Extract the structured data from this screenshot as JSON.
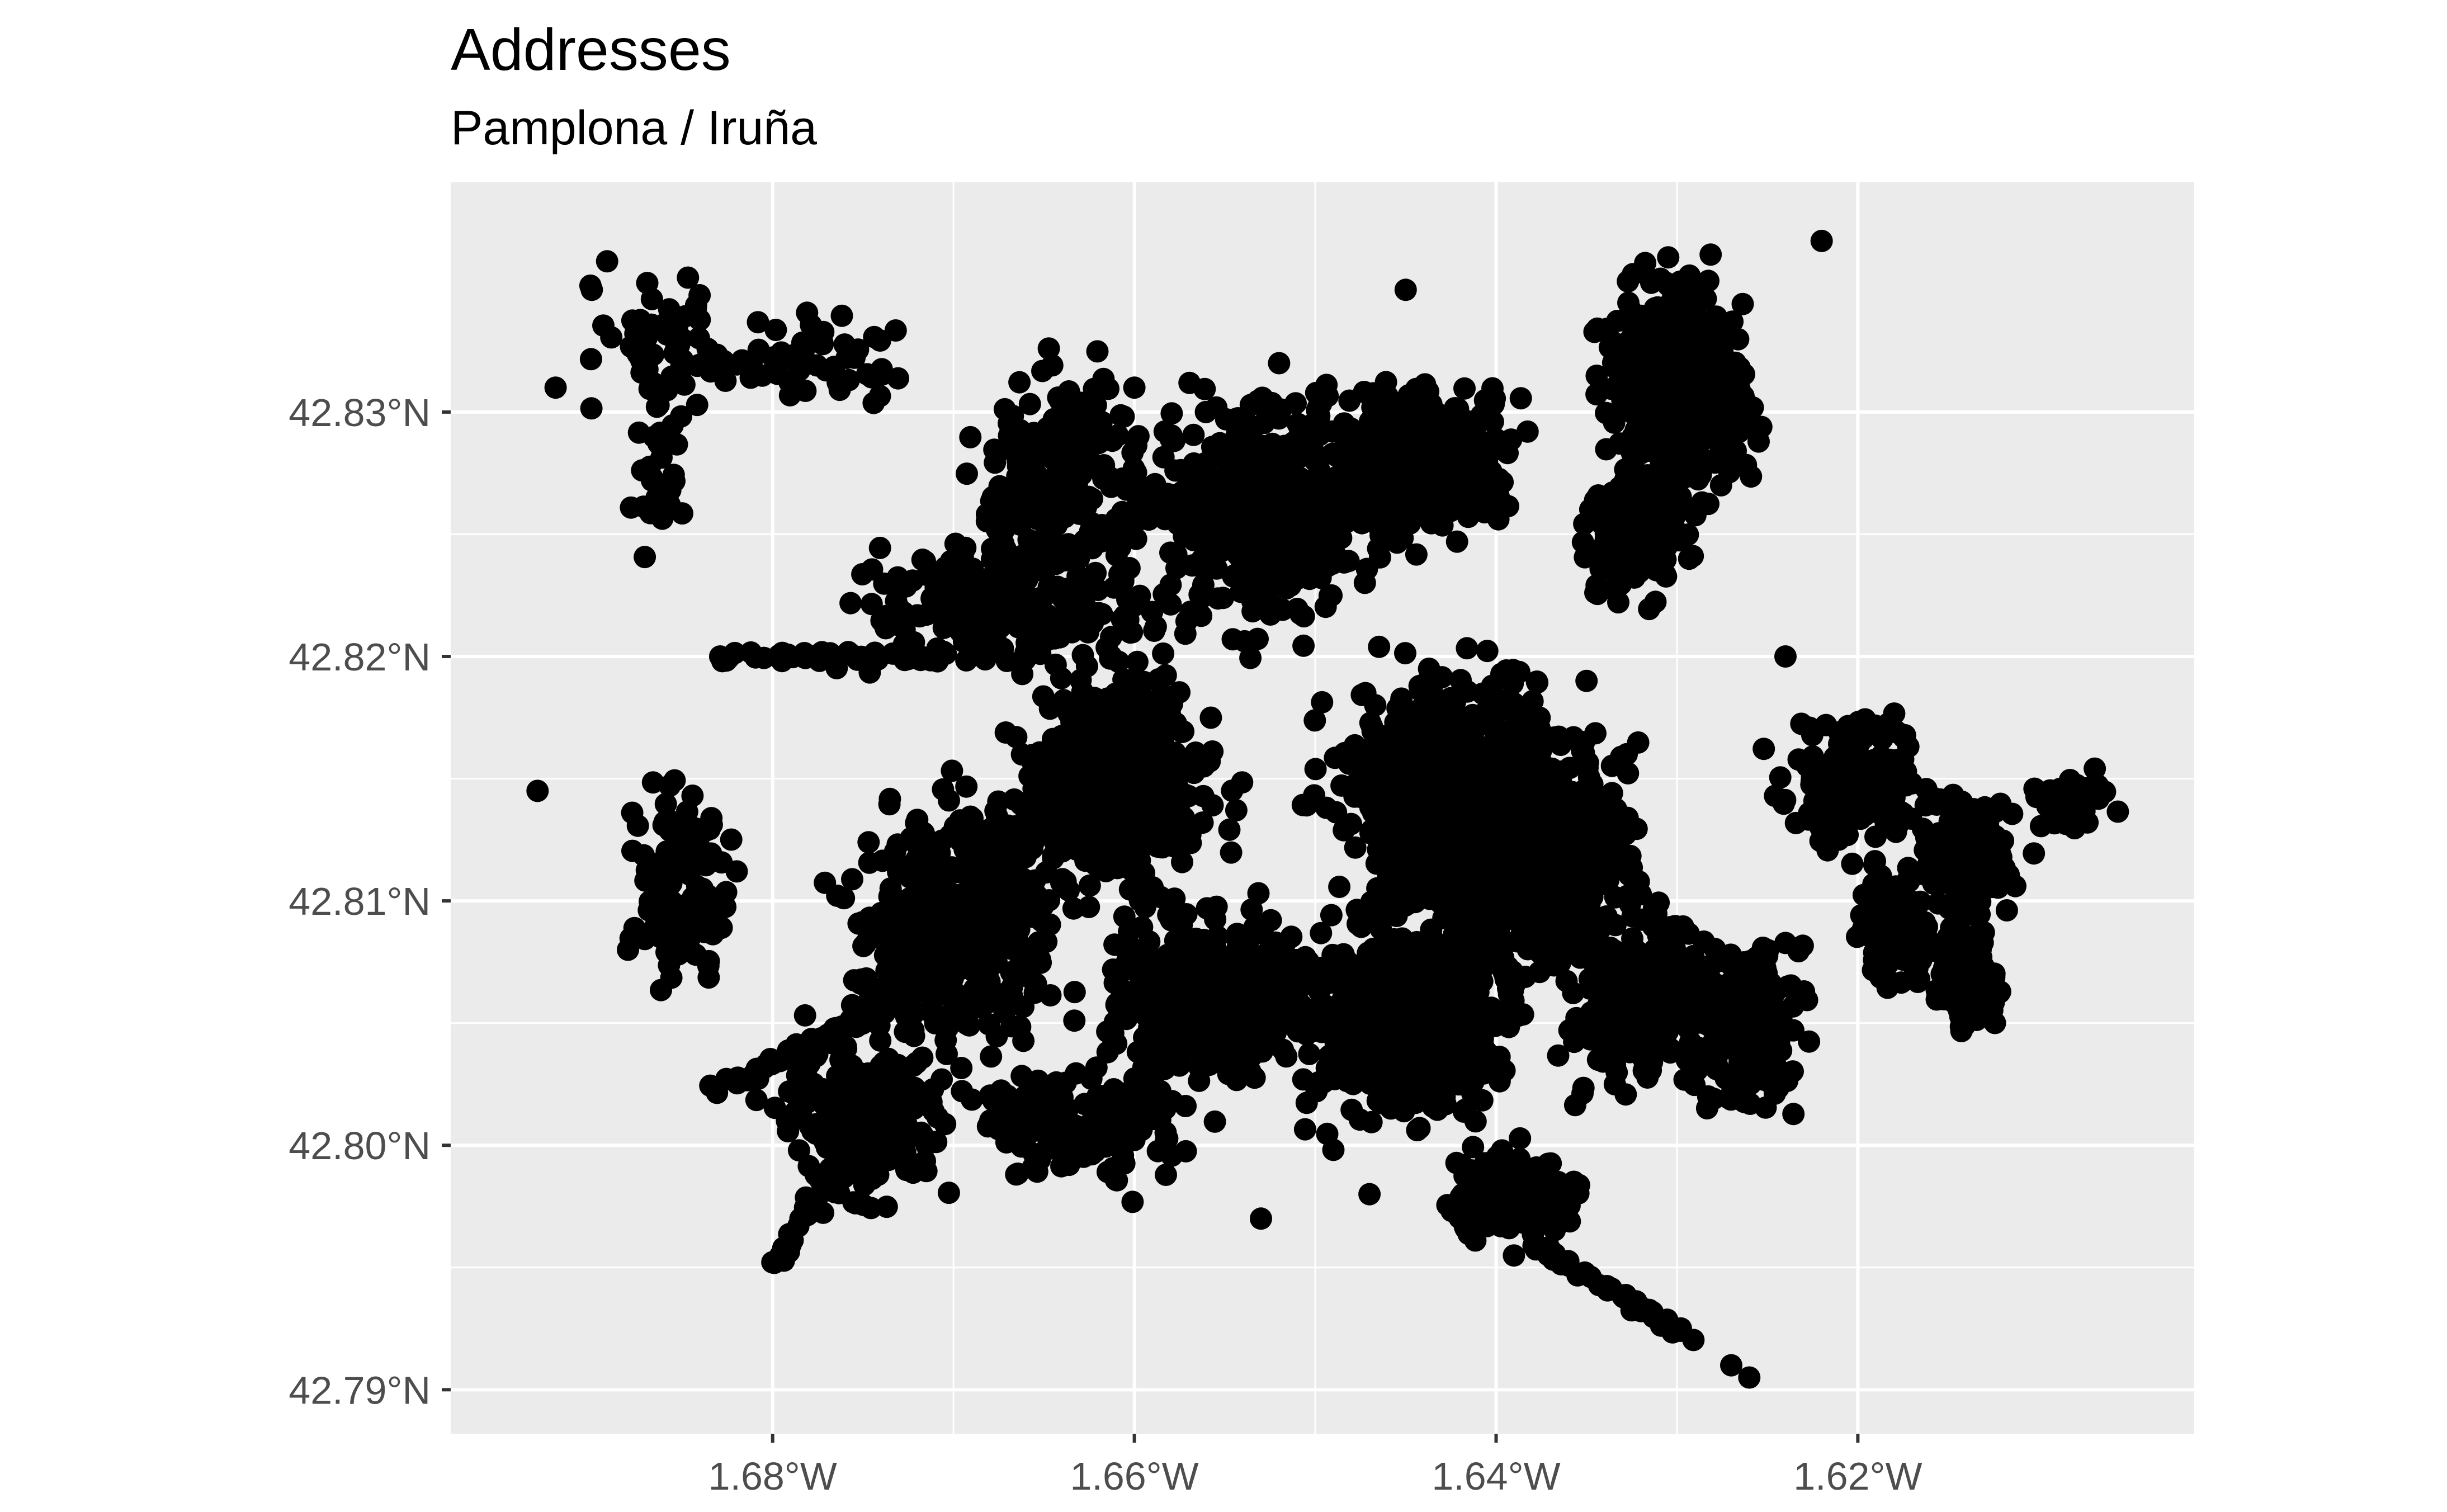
{
  "chart_data": {
    "type": "scatter",
    "title": "Addresses",
    "subtitle": "Pamplona / Iruña",
    "xlabel": "",
    "ylabel": "",
    "x_ticks": [
      {
        "value": -1.68,
        "label": "1.68°W"
      },
      {
        "value": -1.66,
        "label": "1.66°W"
      },
      {
        "value": -1.64,
        "label": "1.64°W"
      },
      {
        "value": -1.62,
        "label": "1.62°W"
      }
    ],
    "y_ticks": [
      {
        "value": 42.79,
        "label": "42.79°N"
      },
      {
        "value": 42.8,
        "label": "42.80°N"
      },
      {
        "value": 42.81,
        "label": "42.81°N"
      },
      {
        "value": 42.82,
        "label": "42.82°N"
      },
      {
        "value": 42.83,
        "label": "42.83°N"
      }
    ],
    "xlim": [
      -1.6978,
      -1.6014
    ],
    "ylim": [
      42.7882,
      42.8394
    ],
    "grid": true,
    "panel_background": "#ebebeb",
    "grid_color": "#ffffff",
    "point_color": "#000000",
    "clusters": [
      {
        "lon": -1.6855,
        "lat": 42.8325,
        "sd_lon": 0.0035,
        "sd_lat": 0.0025,
        "count": 60
      },
      {
        "lon": -1.686,
        "lat": 42.827,
        "sd_lon": 0.0015,
        "sd_lat": 0.003,
        "count": 30
      },
      {
        "lon": -1.677,
        "lat": 42.832,
        "sd_lon": 0.004,
        "sd_lat": 0.0015,
        "count": 50
      },
      {
        "lon": -1.664,
        "lat": 42.8275,
        "sd_lon": 0.004,
        "sd_lat": 0.003,
        "count": 200
      },
      {
        "lon": -1.667,
        "lat": 42.822,
        "sd_lon": 0.007,
        "sd_lat": 0.002,
        "count": 220
      },
      {
        "lon": -1.653,
        "lat": 42.826,
        "sd_lon": 0.005,
        "sd_lat": 0.0035,
        "count": 450
      },
      {
        "lon": -1.644,
        "lat": 42.828,
        "sd_lon": 0.004,
        "sd_lat": 0.0025,
        "count": 300
      },
      {
        "lon": -1.63,
        "lat": 42.831,
        "sd_lon": 0.003,
        "sd_lat": 0.0035,
        "count": 450
      },
      {
        "lon": -1.632,
        "lat": 42.825,
        "sd_lon": 0.0025,
        "sd_lat": 0.002,
        "count": 150
      },
      {
        "lon": -1.661,
        "lat": 42.815,
        "sd_lon": 0.004,
        "sd_lat": 0.0035,
        "count": 500
      },
      {
        "lon": -1.642,
        "lat": 42.814,
        "sd_lon": 0.005,
        "sd_lat": 0.004,
        "count": 800
      },
      {
        "lon": -1.637,
        "lat": 42.812,
        "sd_lon": 0.0035,
        "sd_lat": 0.003,
        "count": 400
      },
      {
        "lon": -1.67,
        "lat": 42.809,
        "sd_lon": 0.004,
        "sd_lat": 0.0035,
        "count": 450
      },
      {
        "lon": -1.656,
        "lat": 42.806,
        "sd_lon": 0.004,
        "sd_lat": 0.0025,
        "count": 500
      },
      {
        "lon": -1.645,
        "lat": 42.805,
        "sd_lon": 0.0045,
        "sd_lat": 0.003,
        "count": 500
      },
      {
        "lon": -1.632,
        "lat": 42.806,
        "sd_lon": 0.003,
        "sd_lat": 0.003,
        "count": 250
      },
      {
        "lon": -1.626,
        "lat": 42.805,
        "sd_lon": 0.0025,
        "sd_lat": 0.0025,
        "count": 250
      },
      {
        "lon": -1.675,
        "lat": 42.801,
        "sd_lon": 0.004,
        "sd_lat": 0.003,
        "count": 200
      },
      {
        "lon": -1.663,
        "lat": 42.801,
        "sd_lon": 0.005,
        "sd_lat": 0.002,
        "count": 150
      },
      {
        "lon": -1.639,
        "lat": 42.798,
        "sd_lon": 0.003,
        "sd_lat": 0.0015,
        "count": 150
      },
      {
        "lon": -1.685,
        "lat": 42.811,
        "sd_lon": 0.002,
        "sd_lat": 0.003,
        "count": 120
      },
      {
        "lon": -1.62,
        "lat": 42.815,
        "sd_lon": 0.003,
        "sd_lat": 0.002,
        "count": 180
      },
      {
        "lon": -1.614,
        "lat": 42.812,
        "sd_lon": 0.002,
        "sd_lat": 0.002,
        "count": 150
      },
      {
        "lon": -1.618,
        "lat": 42.809,
        "sd_lon": 0.0015,
        "sd_lat": 0.002,
        "count": 100
      },
      {
        "lon": -1.614,
        "lat": 42.807,
        "sd_lon": 0.0015,
        "sd_lat": 0.002,
        "count": 100
      },
      {
        "lon": -1.608,
        "lat": 42.814,
        "sd_lon": 0.002,
        "sd_lat": 0.001,
        "count": 40
      }
    ],
    "tracks": [
      {
        "from": [
          -1.684,
          42.802
        ],
        "to": [
          -1.67,
          42.807
        ],
        "count": 80
      },
      {
        "from": [
          -1.68,
          42.795
        ],
        "to": [
          -1.673,
          42.803
        ],
        "count": 60
      },
      {
        "from": [
          -1.683,
          42.82
        ],
        "to": [
          -1.67,
          42.82
        ],
        "count": 40
      },
      {
        "from": [
          -1.67,
          42.822
        ],
        "to": [
          -1.65,
          42.829
        ],
        "count": 150
      },
      {
        "from": [
          -1.638,
          42.796
        ],
        "to": [
          -1.629,
          42.792
        ],
        "count": 40
      },
      {
        "from": [
          -1.644,
          42.819
        ],
        "to": [
          -1.639,
          42.806
        ],
        "count": 120
      }
    ],
    "outliers": [
      [
        -1.692,
        42.831
      ],
      [
        -1.69,
        42.835
      ],
      [
        -1.693,
        42.8145
      ],
      [
        -1.622,
        42.837
      ],
      [
        -1.627,
        42.791
      ],
      [
        -1.626,
        42.7905
      ],
      [
        -1.624,
        42.82
      ],
      [
        -1.635,
        42.819
      ],
      [
        -1.645,
        42.835
      ],
      [
        -1.652,
        42.832
      ],
      [
        -1.66,
        42.831
      ],
      [
        -1.669,
        42.81
      ],
      [
        -1.653,
        42.797
      ],
      [
        -1.647,
        42.798
      ],
      [
        -1.688,
        42.808
      ]
    ]
  }
}
